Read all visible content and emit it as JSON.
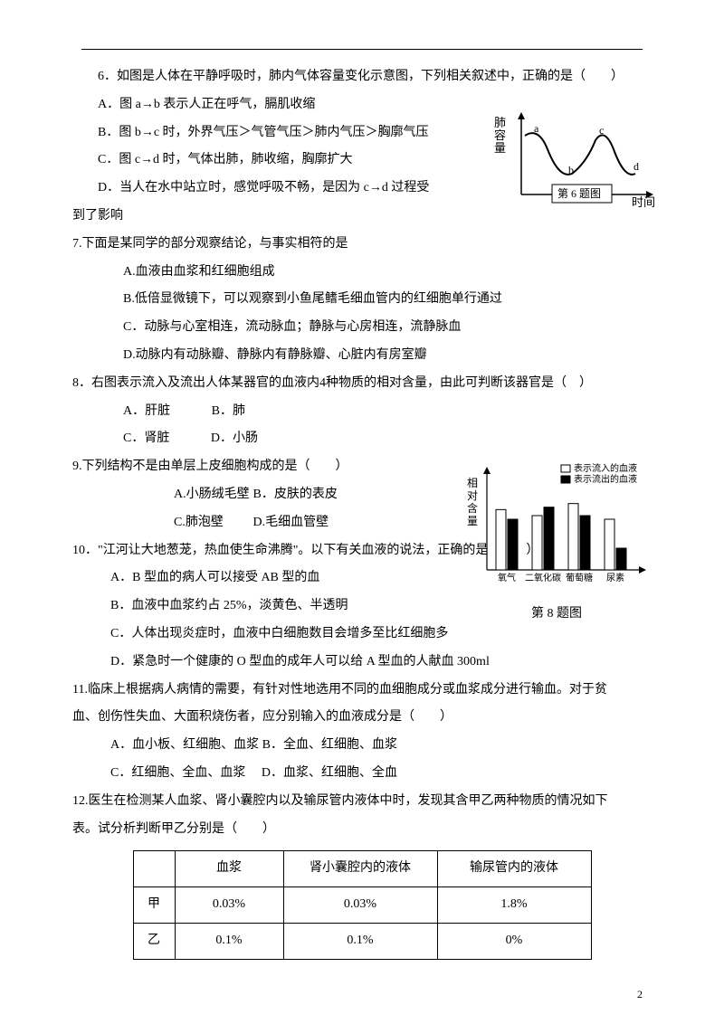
{
  "q6": {
    "stem": "6．如图是人体在平静呼吸时，肺内气体容量变化示意图，下列相关叙述中，正确的是（　　）",
    "a": "A．图 a→b 表示人正在呼气，膈肌收缩",
    "b": "B．图 b→c 时，外界气压＞气管气压＞肺内气压＞胸廓气压",
    "c": "C．图 c→d 时，气体出肺，肺收缩，胸廓扩大",
    "d": "D．当人在水中站立时，感觉呼吸不畅，是因为 c→d 过程受",
    "d2": "到了影响"
  },
  "q7": {
    "stem": "7.下面是某同学的部分观察结论，与事实相符的是",
    "a": "A.血液由血浆和红细胞组成",
    "b": "B.低倍显微镜下，可以观察到小鱼尾鳍毛细血管内的红细胞单行通过",
    "c": "C．动脉与心室相连，流动脉血；静脉与心房相连，流静脉血",
    "d": "D.动脉内有动脉瓣、静脉内有静脉瓣、心脏内有房室瓣"
  },
  "q8": {
    "stem": "8．右图表示流入及流出人体某器官的血液内4种物质的相对含量，由此可判断该器官是（　）",
    "a": "A．肝脏",
    "b": "B．肺",
    "c": "C．肾脏",
    "d": "D．小肠"
  },
  "q9": {
    "stem": "9.下列结构不是由单层上皮细胞构成的是（　　）",
    "a": "A.小肠绒毛壁",
    "b": "B．皮肤的表皮",
    "c": "C.肺泡壁",
    "d": "D.毛细血管壁"
  },
  "q10": {
    "stem": "10．\"江河让大地葱茏，热血使生命沸腾\"。以下有关血液的说法，正确的是（　　）",
    "a": "A．B 型血的病人可以接受 AB 型的血",
    "b": "B．血液中血浆约占 25%，淡黄色、半透明",
    "c": "C．人体出现炎症时，血液中白细胞数目会增多至比红细胞多",
    "d": "D．紧急时一个健康的 O 型血的成年人可以给 A 型血的人献血 300ml"
  },
  "q11": {
    "stem": "11.临床上根据病人病情的需要，有针对性地选用不同的血细胞成分或血浆成分进行输血。对于贫",
    "stem2": "血、创伤性失血、大面积烧伤者，应分别输入的血液成分是（　　）",
    "a": "A．血小板、红细胞、血浆",
    "b": "B．全血、红细胞、血浆",
    "c": "C．红细胞、全血、血浆",
    "d": "D．血浆、红细胞、全血"
  },
  "q12": {
    "stem": "12.医生在检测某人血浆、肾小囊腔内以及输尿管内液体中时，发现其含甲乙两种物质的情况如下",
    "stem2": "表。试分析判断甲乙分别是（　　）"
  },
  "table": {
    "h1": "血浆",
    "h2": "肾小囊腔内的液体",
    "h3": "输尿管内的液体",
    "r1": {
      "label": "甲",
      "c1": "0.03%",
      "c2": "0.03%",
      "c3": "1.8%"
    },
    "r2": {
      "label": "乙",
      "c1": "0.1%",
      "c2": "0.1%",
      "c3": "0%"
    }
  },
  "fig6": {
    "ylabel": "肺容量",
    "xlabel": "时间",
    "caption": "第 6 题图",
    "labels": {
      "a": "a",
      "b": "b",
      "c": "c",
      "d": "d"
    }
  },
  "fig8": {
    "ylabel": "相对含量",
    "legend_in": "表示流入的血液",
    "legend_out": "表示流出的血液",
    "caption": "第 8 题图",
    "categories": [
      "氧气",
      "二氧化碳",
      "葡萄糖",
      "尿素"
    ],
    "values_in": [
      50,
      45,
      55,
      42
    ],
    "values_out": [
      42,
      52,
      45,
      18
    ],
    "bar_in_color": "#ffffff",
    "bar_out_color": "#000000",
    "axis_color": "#000000"
  },
  "pagenum": "2"
}
